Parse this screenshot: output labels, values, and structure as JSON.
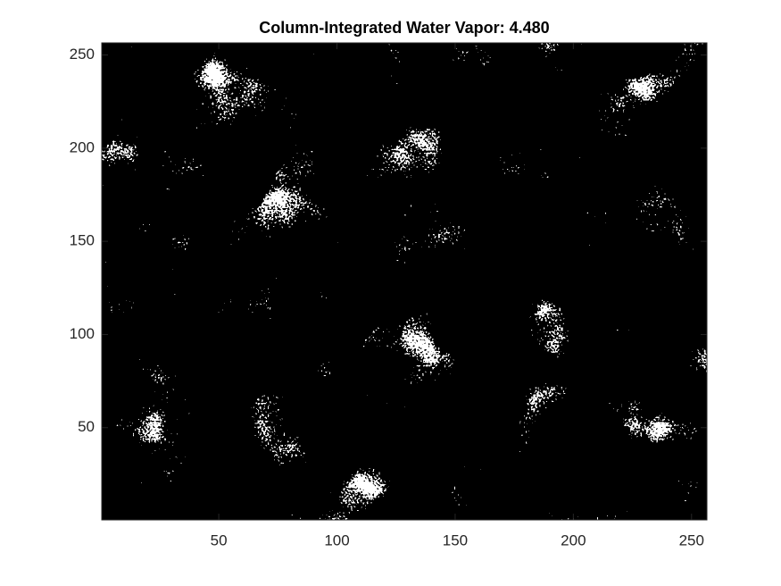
{
  "chart_data": {
    "type": "image",
    "title": "Column-Integrated Water Vapor:  4.480",
    "colormap": [
      "#000000",
      "#ffffff"
    ],
    "xlim": [
      0.5,
      256.5
    ],
    "ylim": [
      0.5,
      256.5
    ],
    "xticks": [
      50,
      100,
      150,
      200,
      250
    ],
    "yticks": [
      50,
      100,
      150,
      200,
      250
    ]
  }
}
